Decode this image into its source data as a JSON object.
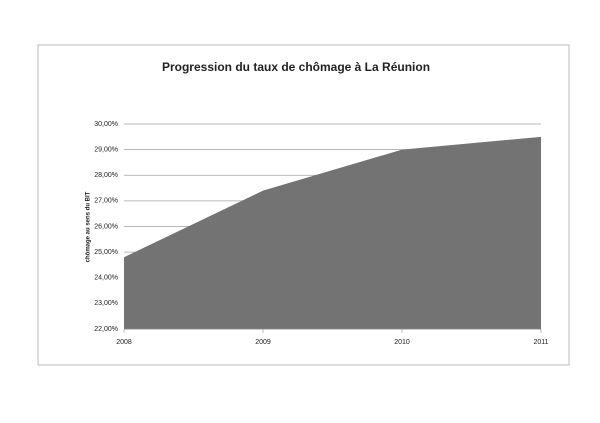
{
  "chart_data": {
    "type": "area",
    "title": "Progression du taux de chômage à La Réunion",
    "y_label": "chômage au sens du BIT",
    "x": [
      2008,
      2009,
      2010,
      2011
    ],
    "values": [
      24.8,
      27.4,
      29.0,
      29.5
    ],
    "color": "#737373",
    "xlim": [
      2008,
      2011
    ],
    "xticks": [
      2008,
      2009,
      2010,
      2011
    ],
    "ylim": [
      22,
      30
    ],
    "yticks": [
      {
        "value": 22,
        "label": "22,00%"
      },
      {
        "value": 23,
        "label": "23,00%"
      },
      {
        "value": 24,
        "label": "24,00%"
      },
      {
        "value": 25,
        "label": "25,00%"
      },
      {
        "value": 26,
        "label": "26,00%"
      },
      {
        "value": 27,
        "label": "27,00%"
      },
      {
        "value": 28,
        "label": "28,00%"
      },
      {
        "value": 29,
        "label": "29,00%"
      },
      {
        "value": 30,
        "label": "30,00%"
      }
    ],
    "grid": true
  }
}
